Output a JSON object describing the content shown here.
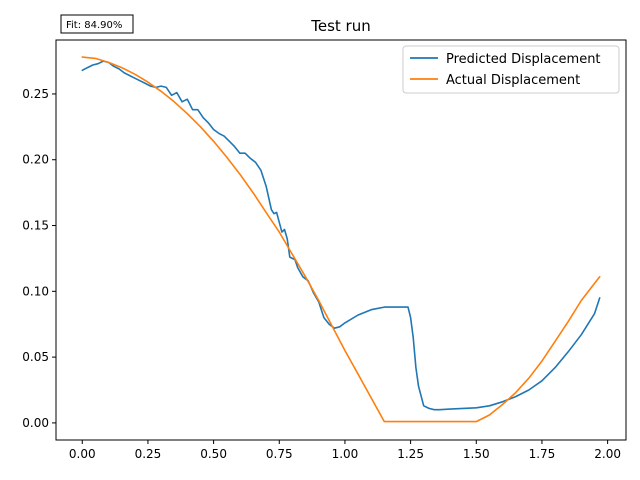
{
  "fit_annotation": "Fit: 84.90%",
  "chart_data": {
    "type": "line",
    "title": "Test run",
    "xlabel": "",
    "ylabel": "",
    "xlim": [
      -0.1,
      2.07
    ],
    "ylim": [
      -0.013,
      0.291
    ],
    "xticks": [
      "0.00",
      "0.25",
      "0.50",
      "0.75",
      "1.00",
      "1.25",
      "1.50",
      "1.75",
      "2.00"
    ],
    "yticks": [
      "0.00",
      "0.05",
      "0.10",
      "0.15",
      "0.20",
      "0.25"
    ],
    "grid": false,
    "legend": "top-right",
    "series": [
      {
        "name": "Predicted Displacement",
        "color": "#1f77b4",
        "x": [
          0.0,
          0.02,
          0.04,
          0.06,
          0.08,
          0.1,
          0.12,
          0.14,
          0.16,
          0.18,
          0.2,
          0.22,
          0.24,
          0.26,
          0.28,
          0.3,
          0.32,
          0.34,
          0.36,
          0.38,
          0.4,
          0.42,
          0.44,
          0.46,
          0.48,
          0.5,
          0.52,
          0.54,
          0.56,
          0.58,
          0.6,
          0.62,
          0.64,
          0.66,
          0.68,
          0.7,
          0.72,
          0.73,
          0.74,
          0.76,
          0.77,
          0.78,
          0.79,
          0.8,
          0.81,
          0.82,
          0.84,
          0.86,
          0.88,
          0.9,
          0.92,
          0.94,
          0.96,
          0.98,
          1.0,
          1.05,
          1.1,
          1.15,
          1.2,
          1.24,
          1.25,
          1.26,
          1.27,
          1.28,
          1.3,
          1.32,
          1.34,
          1.36,
          1.4,
          1.45,
          1.5,
          1.55,
          1.6,
          1.65,
          1.7,
          1.75,
          1.8,
          1.85,
          1.9,
          1.95,
          1.97
        ],
        "y": [
          0.268,
          0.27,
          0.272,
          0.273,
          0.275,
          0.274,
          0.271,
          0.269,
          0.266,
          0.264,
          0.262,
          0.26,
          0.258,
          0.256,
          0.255,
          0.256,
          0.255,
          0.249,
          0.251,
          0.244,
          0.246,
          0.238,
          0.238,
          0.232,
          0.228,
          0.223,
          0.22,
          0.218,
          0.214,
          0.21,
          0.205,
          0.205,
          0.201,
          0.198,
          0.192,
          0.18,
          0.162,
          0.159,
          0.16,
          0.145,
          0.147,
          0.14,
          0.126,
          0.125,
          0.124,
          0.118,
          0.111,
          0.108,
          0.099,
          0.092,
          0.08,
          0.075,
          0.072,
          0.073,
          0.076,
          0.082,
          0.086,
          0.088,
          0.088,
          0.088,
          0.08,
          0.065,
          0.042,
          0.028,
          0.013,
          0.011,
          0.01,
          0.01,
          0.0105,
          0.011,
          0.0115,
          0.013,
          0.016,
          0.02,
          0.025,
          0.032,
          0.042,
          0.054,
          0.067,
          0.083,
          0.095
        ]
      },
      {
        "name": "Actual Displacement",
        "color": "#ff7f0e",
        "x": [
          0.0,
          0.05,
          0.1,
          0.15,
          0.2,
          0.25,
          0.3,
          0.35,
          0.4,
          0.45,
          0.5,
          0.55,
          0.6,
          0.65,
          0.7,
          0.75,
          0.8,
          0.85,
          0.9,
          0.95,
          1.0,
          1.05,
          1.1,
          1.15,
          1.2,
          1.25,
          1.3,
          1.35,
          1.4,
          1.45,
          1.5,
          1.55,
          1.6,
          1.65,
          1.7,
          1.75,
          1.8,
          1.85,
          1.9,
          1.95,
          1.97
        ],
        "y": [
          0.278,
          0.277,
          0.274,
          0.27,
          0.265,
          0.259,
          0.252,
          0.244,
          0.235,
          0.225,
          0.214,
          0.202,
          0.189,
          0.175,
          0.16,
          0.145,
          0.128,
          0.111,
          0.093,
          0.074,
          0.055,
          0.037,
          0.019,
          0.001,
          0.001,
          0.001,
          0.001,
          0.001,
          0.001,
          0.001,
          0.001,
          0.006,
          0.014,
          0.023,
          0.034,
          0.047,
          0.062,
          0.077,
          0.093,
          0.106,
          0.111
        ]
      }
    ]
  }
}
